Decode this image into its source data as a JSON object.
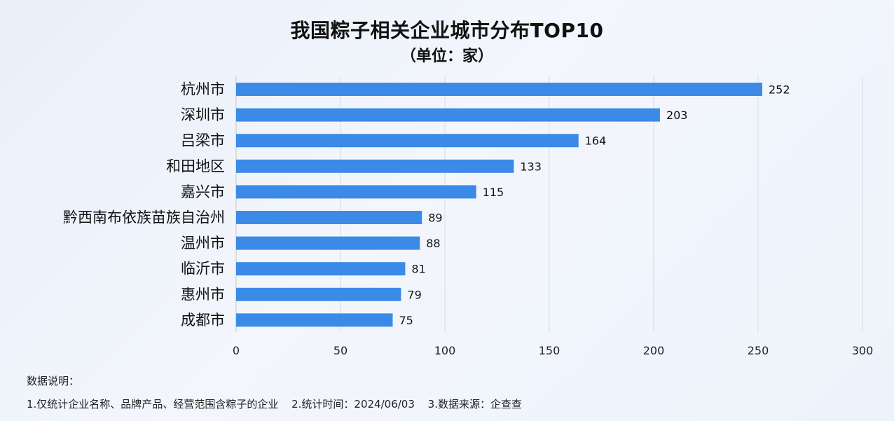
{
  "chart_data": {
    "type": "bar",
    "orientation": "horizontal",
    "title": "我国粽子相关企业城市分布TOP10",
    "subtitle": "（单位：家）",
    "categories": [
      "杭州市",
      "深圳市",
      "吕梁市",
      "和田地区",
      "嘉兴市",
      "黔西南布依族苗族自治州",
      "温州市",
      "临沂市",
      "惠州市",
      "成都市"
    ],
    "values": [
      252,
      203,
      164,
      133,
      115,
      89,
      88,
      81,
      79,
      75
    ],
    "xlim": [
      0,
      300
    ],
    "xticks": [
      0,
      50,
      100,
      150,
      200,
      250,
      300
    ],
    "grid": true,
    "bar_color": "#3c8ae8"
  },
  "notes": {
    "heading": "数据说明：",
    "item1": "1.仅统计企业名称、品牌产品、经营范围含粽子的企业",
    "item2": "2.统计时间：2024/06/03",
    "item3": "3.数据来源：企查查"
  }
}
